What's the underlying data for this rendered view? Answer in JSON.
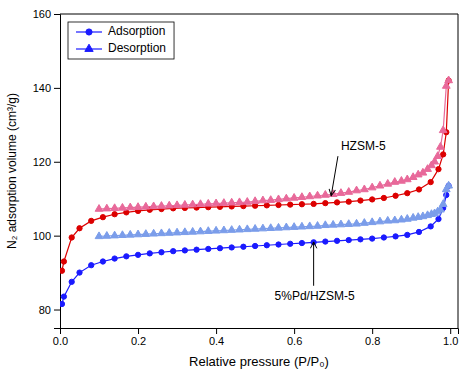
{
  "chart_data": {
    "type": "line",
    "x_label": "Relative pressure (P/P₀)",
    "y_label": "N₂ adsorption volume (cm³/g)",
    "xlim": [
      0.0,
      1.02
    ],
    "ylim": [
      75,
      160
    ],
    "xticks": [
      {
        "value": 0.0,
        "label": "0.0"
      },
      0.2,
      0.4,
      0.6,
      0.8,
      {
        "value": 1.0,
        "label": "1.0"
      }
    ],
    "yticks": [
      80,
      100,
      120,
      140,
      160
    ],
    "grid": false,
    "legend": "upper left",
    "legend_entries": [
      {
        "name": "Adsorption",
        "color": "#1a1aff",
        "marker": "circle"
      },
      {
        "name": "Desorption",
        "color": "#1a1aff",
        "marker": "triangle"
      }
    ],
    "series": [
      {
        "color": "#dc0000",
        "marker": "circle",
        "x": [
          0.005,
          0.01,
          0.03,
          0.05,
          0.08,
          0.11,
          0.14,
          0.17,
          0.2,
          0.23,
          0.26,
          0.29,
          0.32,
          0.35,
          0.38,
          0.41,
          0.44,
          0.47,
          0.5,
          0.53,
          0.56,
          0.59,
          0.62,
          0.65,
          0.68,
          0.71,
          0.74,
          0.77,
          0.8,
          0.83,
          0.86,
          0.89,
          0.92,
          0.95,
          0.97,
          0.982,
          0.99,
          0.996
        ],
        "values": [
          90.5,
          93.0,
          99.5,
          102.0,
          104.0,
          105.0,
          105.8,
          106.3,
          106.7,
          107.0,
          107.2,
          107.4,
          107.5,
          107.6,
          107.7,
          107.8,
          107.9,
          108.0,
          108.1,
          108.2,
          108.3,
          108.4,
          108.5,
          108.6,
          108.8,
          109.0,
          109.2,
          109.5,
          109.8,
          110.2,
          110.8,
          111.5,
          112.5,
          114.5,
          118.0,
          122.0,
          128.0,
          142.0
        ]
      },
      {
        "color": "#e8699a",
        "marker": "triangle",
        "x": [
          0.996,
          0.99,
          0.982,
          0.975,
          0.968,
          0.96,
          0.952,
          0.942,
          0.93,
          0.918,
          0.905,
          0.89,
          0.875,
          0.858,
          0.84,
          0.82,
          0.8,
          0.78,
          0.76,
          0.74,
          0.72,
          0.7,
          0.68,
          0.66,
          0.64,
          0.62,
          0.6,
          0.58,
          0.56,
          0.54,
          0.52,
          0.5,
          0.48,
          0.46,
          0.44,
          0.42,
          0.4,
          0.38,
          0.36,
          0.34,
          0.32,
          0.3,
          0.28,
          0.26,
          0.24,
          0.22,
          0.2,
          0.18,
          0.16,
          0.14,
          0.12,
          0.1
        ],
        "values": [
          142.0,
          140.5,
          128.5,
          124.0,
          121.5,
          120.0,
          119.0,
          118.0,
          117.0,
          116.5,
          115.8,
          115.2,
          114.8,
          114.5,
          114.0,
          113.5,
          113.0,
          112.5,
          112.2,
          111.8,
          111.5,
          111.2,
          111.0,
          110.8,
          110.6,
          110.4,
          110.2,
          110.0,
          109.8,
          109.6,
          109.5,
          109.3,
          109.1,
          109.0,
          108.9,
          108.8,
          108.7,
          108.6,
          108.5,
          108.4,
          108.3,
          108.2,
          108.1,
          108.0,
          107.9,
          107.8,
          107.7,
          107.6,
          107.5,
          107.4,
          107.3,
          107.2
        ]
      },
      {
        "color": "#1a1aff",
        "marker": "circle",
        "x": [
          0.005,
          0.01,
          0.03,
          0.05,
          0.08,
          0.11,
          0.14,
          0.17,
          0.2,
          0.23,
          0.26,
          0.29,
          0.32,
          0.35,
          0.38,
          0.41,
          0.44,
          0.47,
          0.5,
          0.53,
          0.56,
          0.59,
          0.62,
          0.65,
          0.68,
          0.71,
          0.74,
          0.77,
          0.8,
          0.83,
          0.86,
          0.89,
          0.92,
          0.95,
          0.97,
          0.982,
          0.99,
          0.996
        ],
        "values": [
          81.5,
          83.5,
          87.5,
          90.0,
          92.0,
          93.0,
          93.8,
          94.4,
          94.8,
          95.2,
          95.5,
          95.8,
          96.0,
          96.2,
          96.4,
          96.6,
          96.8,
          97.0,
          97.2,
          97.4,
          97.6,
          97.8,
          98.0,
          98.2,
          98.4,
          98.6,
          98.8,
          99.0,
          99.2,
          99.5,
          99.8,
          100.2,
          101.0,
          102.5,
          104.5,
          107.5,
          111.0,
          113.5
        ]
      },
      {
        "color": "#7b9dea",
        "marker": "triangle",
        "x": [
          0.996,
          0.99,
          0.982,
          0.975,
          0.968,
          0.96,
          0.952,
          0.942,
          0.93,
          0.918,
          0.905,
          0.89,
          0.875,
          0.858,
          0.84,
          0.82,
          0.8,
          0.78,
          0.76,
          0.74,
          0.72,
          0.7,
          0.68,
          0.66,
          0.64,
          0.62,
          0.6,
          0.58,
          0.56,
          0.54,
          0.52,
          0.5,
          0.48,
          0.46,
          0.44,
          0.42,
          0.4,
          0.38,
          0.36,
          0.34,
          0.32,
          0.3,
          0.28,
          0.26,
          0.24,
          0.22,
          0.2,
          0.18,
          0.16,
          0.14,
          0.12,
          0.1
        ],
        "values": [
          113.5,
          112.5,
          108.5,
          107.0,
          106.5,
          106.0,
          105.8,
          105.5,
          105.2,
          105.0,
          104.8,
          104.5,
          104.3,
          104.1,
          104.0,
          103.8,
          103.6,
          103.4,
          103.2,
          103.1,
          103.0,
          102.9,
          102.8,
          102.6,
          102.5,
          102.4,
          102.3,
          102.2,
          102.1,
          102.0,
          101.9,
          101.8,
          101.7,
          101.6,
          101.5,
          101.4,
          101.3,
          101.2,
          101.1,
          101.0,
          100.9,
          100.8,
          100.7,
          100.6,
          100.5,
          100.4,
          100.3,
          100.2,
          100.1,
          100.0,
          99.9,
          99.8
        ]
      }
    ],
    "annotations": [
      {
        "text": "HZSM-5",
        "x": 0.695,
        "y": 110.8,
        "text_x": 0.72,
        "text_y": 124.0
      },
      {
        "text": "5%Pd/HZSM-5",
        "x": 0.65,
        "y": 98.3,
        "text_x": 0.55,
        "text_y": 83.5
      }
    ]
  }
}
